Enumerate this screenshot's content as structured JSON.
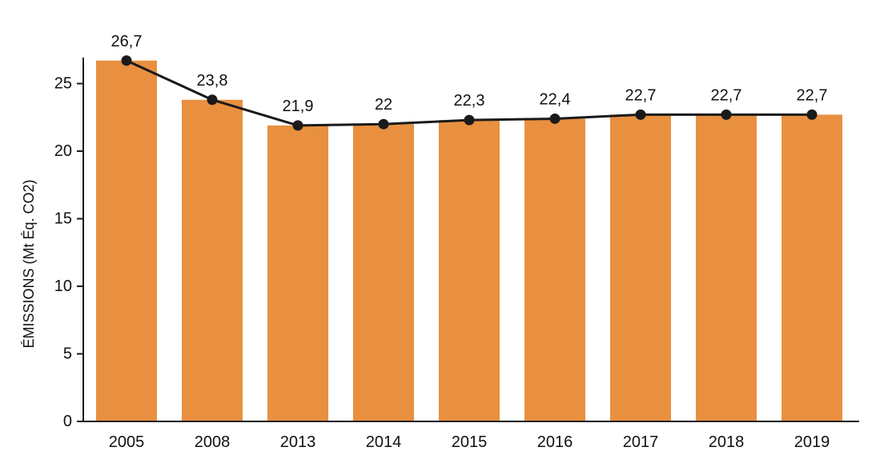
{
  "chart_data": {
    "type": "bar",
    "categories": [
      "2005",
      "2008",
      "2013",
      "2014",
      "2015",
      "2016",
      "2017",
      "2018",
      "2019"
    ],
    "values": [
      26.7,
      23.8,
      21.9,
      22,
      22.3,
      22.4,
      22.7,
      22.7,
      22.7
    ],
    "data_labels": [
      "26,7",
      "23,8",
      "21,9",
      "22",
      "22,3",
      "22,4",
      "22,7",
      "22,7",
      "22,7"
    ],
    "overlay_line": true,
    "title": "",
    "xlabel": "",
    "ylabel": "ÉMISSIONS (Mt Éq. CO2)",
    "ylim": [
      0,
      26.7
    ],
    "yticks": [
      "0",
      "5",
      "10",
      "15",
      "20",
      "25"
    ],
    "ytick_values": [
      0,
      5,
      10,
      15,
      20,
      25
    ],
    "grid": false,
    "colors": {
      "bar": "#E8903F",
      "line": "#1a1a1a",
      "axis": "#1a1a1a"
    }
  }
}
